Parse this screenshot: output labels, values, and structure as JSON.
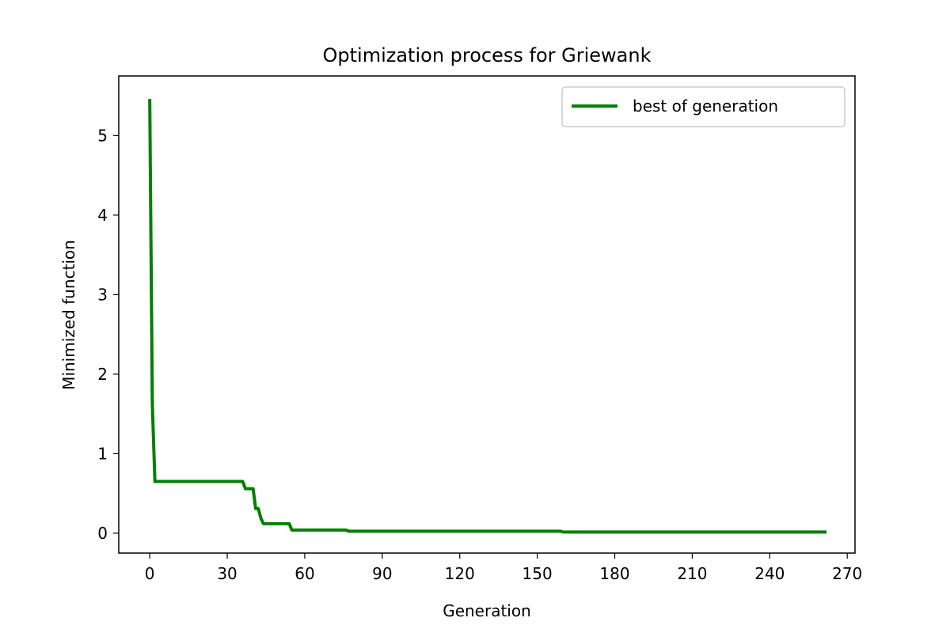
{
  "chart_data": {
    "type": "line",
    "title": "Optimization process for Griewank",
    "xlabel": "Generation",
    "ylabel": "Minimized function",
    "xlim": [
      -12,
      273
    ],
    "ylim": [
      -0.25,
      5.75
    ],
    "xticks": [
      0,
      30,
      60,
      90,
      120,
      150,
      180,
      210,
      240,
      270
    ],
    "yticks": [
      0,
      1,
      2,
      3,
      4,
      5
    ],
    "grid": false,
    "legend": {
      "placement": "upper right",
      "entries": [
        "best of generation"
      ]
    },
    "series": [
      {
        "name": "best of generation",
        "color": "#008000",
        "x": [
          0,
          1,
          2,
          36,
          37,
          40,
          41,
          42,
          43,
          44,
          54,
          55,
          76,
          77,
          159,
          160,
          262
        ],
        "y": [
          5.46,
          1.62,
          0.65,
          0.65,
          0.56,
          0.56,
          0.31,
          0.31,
          0.19,
          0.12,
          0.12,
          0.04,
          0.04,
          0.025,
          0.025,
          0.015,
          0.015
        ]
      }
    ]
  }
}
